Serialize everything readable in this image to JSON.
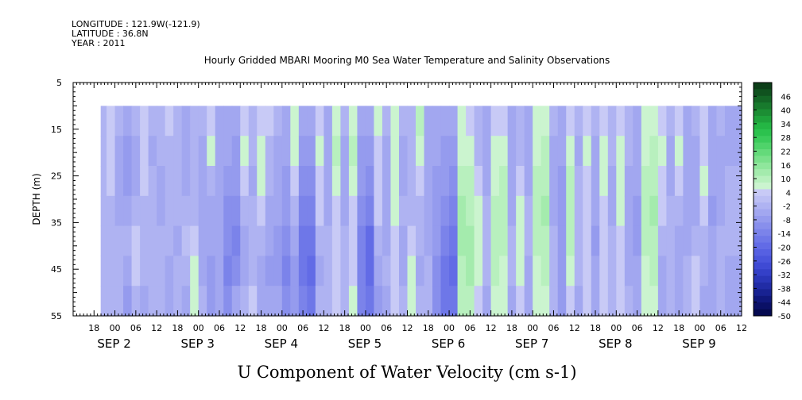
{
  "header": {
    "longitude": "LONGITUDE : 121.9W(-121.9)",
    "latitude": "LATITUDE : 36.8N",
    "year": "YEAR : 2011"
  },
  "chart_data": {
    "type": "heatmap",
    "title": "Hourly Gridded MBARI Mooring M0 Sea Water Temperature and Salinity Observations",
    "xlabel": "U Component of Water Velocity (cm s-1)",
    "ylabel": "DEPTH (m)",
    "ylim": [
      55,
      5
    ],
    "y_ticks": [
      "5",
      "15",
      "25",
      "35",
      "45",
      "55"
    ],
    "x_hour_ticks": [
      "18",
      "00",
      "06",
      "12",
      "18",
      "00",
      "06",
      "12",
      "18",
      "00",
      "06",
      "12",
      "18",
      "00",
      "06",
      "12",
      "18",
      "00",
      "06",
      "12",
      "18",
      "00",
      "06",
      "12",
      "18",
      "00",
      "06",
      "12",
      "18",
      "00",
      "06",
      "12"
    ],
    "x_day_labels": [
      "SEP 2",
      "SEP 3",
      "SEP 4",
      "SEP 5",
      "SEP 6",
      "SEP 7",
      "SEP 8",
      "SEP 9"
    ],
    "data_depth_range_m": [
      10,
      55
    ],
    "colorbar": {
      "labels": [
        "46",
        "40",
        "34",
        "28",
        "22",
        "16",
        "10",
        "4",
        "-2",
        "-8",
        "-14",
        "-20",
        "-26",
        "-32",
        "-38",
        "-44",
        "-50"
      ],
      "levels": [
        52,
        49,
        46,
        43,
        40,
        37,
        34,
        31,
        28,
        25,
        22,
        19,
        16,
        13,
        10,
        7,
        4,
        1,
        -2,
        -5,
        -8,
        -11,
        -14,
        -17,
        -20,
        -23,
        -26,
        -29,
        -32,
        -35,
        -38,
        -41,
        -44,
        -47,
        -50
      ],
      "colors": [
        "#0c3e18",
        "#10521f",
        "#146626",
        "#187a2d",
        "#1c8e34",
        "#1fa23b",
        "#24b644",
        "#2cc24e",
        "#3bcb5b",
        "#4fd36a",
        "#64da7a",
        "#7ae08b",
        "#8fe69c",
        "#a4ebad",
        "#b8f0be",
        "#cbf4cf",
        "#c8caf6",
        "#bcbff4",
        "#afb3f2",
        "#a2a7f0",
        "#959bee",
        "#888fec",
        "#7b83ea",
        "#6e77e8",
        "#626be6",
        "#5660e2",
        "#4a55dc",
        "#3f4ad4",
        "#3440c8",
        "#2a36b8",
        "#212ca6",
        "#182292",
        "#10187c",
        "#0a1066",
        "#050a50"
      ]
    },
    "columns": [
      {
        "day": 1.83,
        "profile": [
          -2,
          -2,
          -4,
          -4,
          -4,
          -4,
          -4
        ]
      },
      {
        "day": 1.9,
        "profile": [
          4,
          3,
          2,
          -2,
          -2,
          -4,
          -4
        ]
      },
      {
        "day": 2.0,
        "profile": [
          -4,
          -5,
          -6,
          -5,
          -4,
          -4,
          -4
        ]
      },
      {
        "day": 2.1,
        "profile": [
          -6,
          -8,
          -8,
          -6,
          -4,
          -6,
          -8
        ]
      },
      {
        "day": 2.2,
        "profile": [
          -3,
          -5,
          -6,
          -4,
          4,
          2,
          -2
        ]
      },
      {
        "day": 2.3,
        "profile": [
          3,
          4,
          2,
          -3,
          -3,
          -2,
          -5
        ]
      },
      {
        "day": 2.4,
        "profile": [
          -4,
          -5,
          -4,
          -3,
          -4,
          -4,
          -4
        ]
      },
      {
        "day": 2.5,
        "profile": [
          -3,
          -4,
          -6,
          -5,
          -3,
          -3,
          -2
        ]
      },
      {
        "day": 2.6,
        "profile": [
          2,
          -2,
          -3,
          -3,
          -4,
          -6,
          -7
        ]
      },
      {
        "day": 2.7,
        "profile": [
          -3,
          -3,
          -4,
          -4,
          -5,
          -4,
          -4
        ]
      },
      {
        "day": 2.8,
        "profile": [
          -5,
          -6,
          -5,
          -2,
          -1,
          -3,
          -6
        ]
      },
      {
        "day": 2.9,
        "profile": [
          -4,
          -3,
          -3,
          -3,
          4,
          6,
          5
        ]
      },
      {
        "day": 3.0,
        "profile": [
          -4,
          -5,
          -5,
          -6,
          -6,
          -5,
          -3
        ]
      },
      {
        "day": 3.1,
        "profile": [
          4,
          5,
          -2,
          -5,
          -7,
          -8,
          -8
        ]
      },
      {
        "day": 3.2,
        "profile": [
          -5,
          -6,
          -6,
          -5,
          -6,
          -6,
          -6
        ]
      },
      {
        "day": 3.3,
        "profile": [
          -6,
          -7,
          -9,
          -11,
          -13,
          -14,
          -12
        ]
      },
      {
        "day": 3.4,
        "profile": [
          -7,
          -8,
          -10,
          -12,
          -14,
          -12,
          -7
        ]
      },
      {
        "day": 3.5,
        "profile": [
          4,
          5,
          2,
          -3,
          -5,
          -6,
          -4
        ]
      },
      {
        "day": 3.6,
        "profile": [
          -3,
          -4,
          -5,
          -4,
          -3,
          -2,
          4
        ]
      },
      {
        "day": 3.7,
        "profile": [
          4,
          5,
          6,
          3,
          -2,
          -5,
          -6
        ]
      },
      {
        "day": 3.8,
        "profile": [
          3,
          -2,
          -4,
          -6,
          -7,
          -8,
          -6
        ]
      },
      {
        "day": 3.9,
        "profile": [
          -4,
          -5,
          -6,
          -7,
          -8,
          -9,
          -7
        ]
      },
      {
        "day": 4.0,
        "profile": [
          -5,
          -6,
          -8,
          -10,
          -12,
          -14,
          -12
        ]
      },
      {
        "day": 4.1,
        "profile": [
          5,
          6,
          4,
          -3,
          -6,
          -8,
          -10
        ]
      },
      {
        "day": 4.2,
        "profile": [
          -6,
          -9,
          -12,
          -15,
          -17,
          -18,
          -15
        ]
      },
      {
        "day": 4.3,
        "profile": [
          -7,
          -9,
          -12,
          -16,
          -19,
          -21,
          -18
        ]
      },
      {
        "day": 4.4,
        "profile": [
          3,
          5,
          4,
          2,
          -3,
          -5,
          -4
        ]
      },
      {
        "day": 4.5,
        "profile": [
          -5,
          -6,
          -6,
          -5,
          -4,
          -4,
          -4
        ]
      },
      {
        "day": 4.6,
        "profile": [
          6,
          8,
          6,
          3,
          2,
          3,
          4
        ]
      },
      {
        "day": 4.7,
        "profile": [
          -4,
          -5,
          -6,
          -5,
          -4,
          -3,
          -2
        ]
      },
      {
        "day": 4.8,
        "profile": [
          7,
          8,
          6,
          4,
          3,
          4,
          5
        ]
      },
      {
        "day": 4.9,
        "profile": [
          -6,
          -8,
          -10,
          -12,
          -14,
          -16,
          -15
        ]
      },
      {
        "day": 5.0,
        "profile": [
          -7,
          -9,
          -12,
          -16,
          -20,
          -22,
          -19
        ]
      },
      {
        "day": 5.1,
        "profile": [
          5,
          4,
          3,
          2,
          -3,
          -6,
          -8
        ]
      },
      {
        "day": 5.2,
        "profile": [
          -4,
          -5,
          -6,
          -6,
          -5,
          -4,
          -5
        ]
      },
      {
        "day": 5.3,
        "profile": [
          5,
          6,
          5,
          6,
          4,
          2,
          3
        ]
      },
      {
        "day": 5.4,
        "profile": [
          -4,
          -5,
          -5,
          -4,
          -5,
          -5,
          -4
        ]
      },
      {
        "day": 5.5,
        "profile": [
          -3,
          -4,
          -4,
          -3,
          4,
          6,
          5
        ]
      },
      {
        "day": 5.6,
        "profile": [
          8,
          6,
          4,
          -2,
          -4,
          -5,
          -4
        ]
      },
      {
        "day": 5.7,
        "profile": [
          -5,
          -6,
          -7,
          -6,
          -5,
          -4,
          -4
        ]
      },
      {
        "day": 5.8,
        "profile": [
          -6,
          -7,
          -8,
          -9,
          -10,
          -11,
          -12
        ]
      },
      {
        "day": 5.9,
        "profile": [
          -6,
          -8,
          -10,
          -13,
          -16,
          -18,
          -17
        ]
      },
      {
        "day": 6.0,
        "profile": [
          -7,
          -9,
          -12,
          -15,
          -18,
          -20,
          -18
        ]
      },
      {
        "day": 6.1,
        "profile": [
          5,
          7,
          9,
          11,
          12,
          10,
          8
        ]
      },
      {
        "day": 6.2,
        "profile": [
          4,
          6,
          8,
          10,
          12,
          11,
          9
        ]
      },
      {
        "day": 6.3,
        "profile": [
          -4,
          -3,
          4,
          6,
          7,
          6,
          4
        ]
      },
      {
        "day": 6.4,
        "profile": [
          -5,
          -6,
          -5,
          -4,
          -3,
          -4,
          -5
        ]
      },
      {
        "day": 6.5,
        "profile": [
          3,
          5,
          7,
          9,
          10,
          8,
          6
        ]
      },
      {
        "day": 6.6,
        "profile": [
          4,
          6,
          8,
          9,
          8,
          6,
          5
        ]
      },
      {
        "day": 6.7,
        "profile": [
          -5,
          -6,
          -6,
          -5,
          -4,
          -4,
          -5
        ]
      },
      {
        "day": 6.8,
        "profile": [
          -3,
          -2,
          4,
          6,
          7,
          5,
          4
        ]
      },
      {
        "day": 6.9,
        "profile": [
          -5,
          -6,
          -5,
          -4,
          -4,
          -5,
          -6
        ]
      },
      {
        "day": 7.0,
        "profile": [
          5,
          7,
          9,
          10,
          9,
          7,
          5
        ]
      },
      {
        "day": 7.1,
        "profile": [
          6,
          8,
          10,
          11,
          10,
          8,
          6
        ]
      },
      {
        "day": 7.2,
        "profile": [
          -4,
          -5,
          -6,
          -5,
          -4,
          -3,
          -2
        ]
      },
      {
        "day": 7.3,
        "profile": [
          -6,
          -7,
          -8,
          -9,
          -10,
          -9,
          -8
        ]
      },
      {
        "day": 7.4,
        "profile": [
          4,
          6,
          8,
          9,
          8,
          6,
          4
        ]
      },
      {
        "day": 7.5,
        "profile": [
          -4,
          -5,
          -4,
          -3,
          -3,
          -4,
          -5
        ]
      },
      {
        "day": 7.6,
        "profile": [
          3,
          5,
          4,
          3,
          2,
          3,
          4
        ]
      },
      {
        "day": 7.7,
        "profile": [
          -4,
          -5,
          -6,
          -7,
          -8,
          -7,
          -6
        ]
      },
      {
        "day": 7.8,
        "profile": [
          4,
          6,
          5,
          3,
          2,
          3,
          4
        ]
      },
      {
        "day": 7.9,
        "profile": [
          -3,
          -4,
          -5,
          -5,
          -4,
          -4,
          -4
        ]
      },
      {
        "day": 8.0,
        "profile": [
          3,
          5,
          6,
          5,
          4,
          3,
          3
        ]
      },
      {
        "day": 8.1,
        "profile": [
          -3,
          -4,
          -5,
          -6,
          -6,
          -5,
          -4
        ]
      },
      {
        "day": 8.2,
        "profile": [
          -5,
          -6,
          -7,
          -8,
          -8,
          -7,
          -6
        ]
      },
      {
        "day": 8.3,
        "profile": [
          5,
          7,
          9,
          10,
          9,
          7,
          5
        ]
      },
      {
        "day": 8.4,
        "profile": [
          7,
          9,
          10,
          11,
          10,
          8,
          6
        ]
      },
      {
        "day": 8.5,
        "profile": [
          4,
          5,
          4,
          3,
          -3,
          -5,
          -6
        ]
      },
      {
        "day": 8.6,
        "profile": [
          -4,
          -5,
          -5,
          -4,
          -3,
          -3,
          -4
        ]
      },
      {
        "day": 8.7,
        "profile": [
          4,
          5,
          4,
          -3,
          -5,
          -6,
          -5
        ]
      },
      {
        "day": 8.8,
        "profile": [
          -5,
          -6,
          -7,
          -6,
          -5,
          -4,
          -3
        ]
      },
      {
        "day": 8.9,
        "profile": [
          -4,
          -5,
          -6,
          -5,
          -4,
          3,
          4
        ]
      },
      {
        "day": 9.0,
        "profile": [
          3,
          4,
          5,
          4,
          -3,
          -4,
          -5
        ]
      },
      {
        "day": 9.1,
        "profile": [
          -5,
          -6,
          -7,
          -8,
          -7,
          -6,
          -5
        ]
      },
      {
        "day": 9.2,
        "profile": [
          -4,
          -5,
          -6,
          -5,
          -4,
          -4,
          -4
        ]
      },
      {
        "day": 9.3,
        "profile": [
          -5,
          -5,
          -4,
          -3,
          -4,
          -5,
          -5
        ]
      }
    ]
  }
}
